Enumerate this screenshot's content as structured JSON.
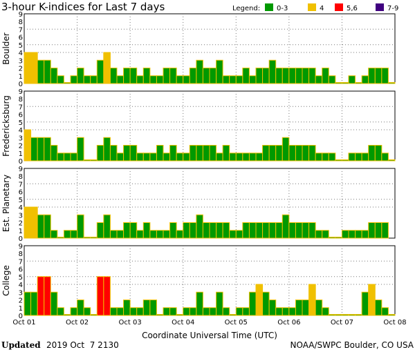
{
  "chart_data": {
    "type": "bar",
    "title": "3-hour K-indices for Last 7 days",
    "xlabel": "Coordinate Universal Time (UTC)",
    "x_ticks": [
      "Oct 01",
      "Oct 02",
      "Oct 03",
      "Oct 04",
      "Oct 05",
      "Oct 06",
      "Oct 07",
      "Oct 08"
    ],
    "y_ticks": [
      "0",
      "1",
      "2",
      "3",
      "4",
      "5",
      "6",
      "7",
      "8",
      "9"
    ],
    "ylim": [
      0,
      9
    ],
    "legend": {
      "label": "Legend:",
      "placement": "top-right",
      "entries": [
        {
          "label": "0-3",
          "color": "#009900"
        },
        {
          "label": "4",
          "color": "#f0c000"
        },
        {
          "label": "5,6",
          "color": "#ff0000"
        },
        {
          "label": "7-9",
          "color": "#400080"
        }
      ]
    },
    "panels": [
      {
        "name": "Boulder",
        "values": [
          4,
          4,
          3,
          3,
          2,
          1,
          0,
          1,
          2,
          1,
          1,
          3,
          4,
          2,
          1,
          2,
          2,
          1,
          2,
          1,
          1,
          2,
          2,
          1,
          1,
          2,
          3,
          2,
          2,
          3,
          1,
          1,
          1,
          2,
          1,
          2,
          2,
          3,
          2,
          2,
          2,
          2,
          2,
          2,
          1,
          2,
          1,
          0,
          0,
          1,
          0,
          1,
          2,
          2,
          2,
          0
        ]
      },
      {
        "name": "Fredericksburg",
        "values": [
          4,
          3,
          3,
          3,
          2,
          1,
          1,
          1,
          3,
          0,
          0,
          2,
          3,
          2,
          1,
          2,
          2,
          1,
          1,
          1,
          2,
          1,
          2,
          1,
          1,
          2,
          2,
          2,
          2,
          1,
          2,
          1,
          1,
          1,
          1,
          1,
          2,
          2,
          2,
          3,
          2,
          2,
          2,
          2,
          1,
          1,
          1,
          0,
          0,
          1,
          1,
          1,
          2,
          2,
          1,
          0
        ]
      },
      {
        "name": "Est. Planetary",
        "values": [
          4,
          4,
          3,
          3,
          1,
          0,
          1,
          1,
          3,
          0,
          0,
          2,
          3,
          1,
          1,
          2,
          2,
          1,
          2,
          1,
          1,
          1,
          2,
          1,
          2,
          2,
          3,
          2,
          2,
          2,
          2,
          1,
          1,
          2,
          2,
          2,
          2,
          2,
          2,
          3,
          2,
          2,
          2,
          2,
          1,
          1,
          0,
          0,
          1,
          1,
          1,
          1,
          2,
          2,
          2,
          null
        ]
      },
      {
        "name": "College",
        "values": [
          3,
          3,
          5,
          5,
          3,
          1,
          0,
          1,
          2,
          1,
          0,
          5,
          5,
          1,
          1,
          2,
          1,
          1,
          2,
          2,
          0,
          1,
          1,
          0,
          1,
          1,
          3,
          1,
          1,
          3,
          1,
          0,
          1,
          1,
          3,
          4,
          3,
          2,
          1,
          1,
          1,
          2,
          2,
          4,
          2,
          1,
          0,
          0,
          0,
          0,
          0,
          3,
          4,
          2,
          1,
          0
        ]
      }
    ]
  },
  "footer": {
    "updated_label": "Updated",
    "updated_value": "2019 Oct  7 2130",
    "credit": "NOAA/SWPC Boulder, CO USA"
  }
}
